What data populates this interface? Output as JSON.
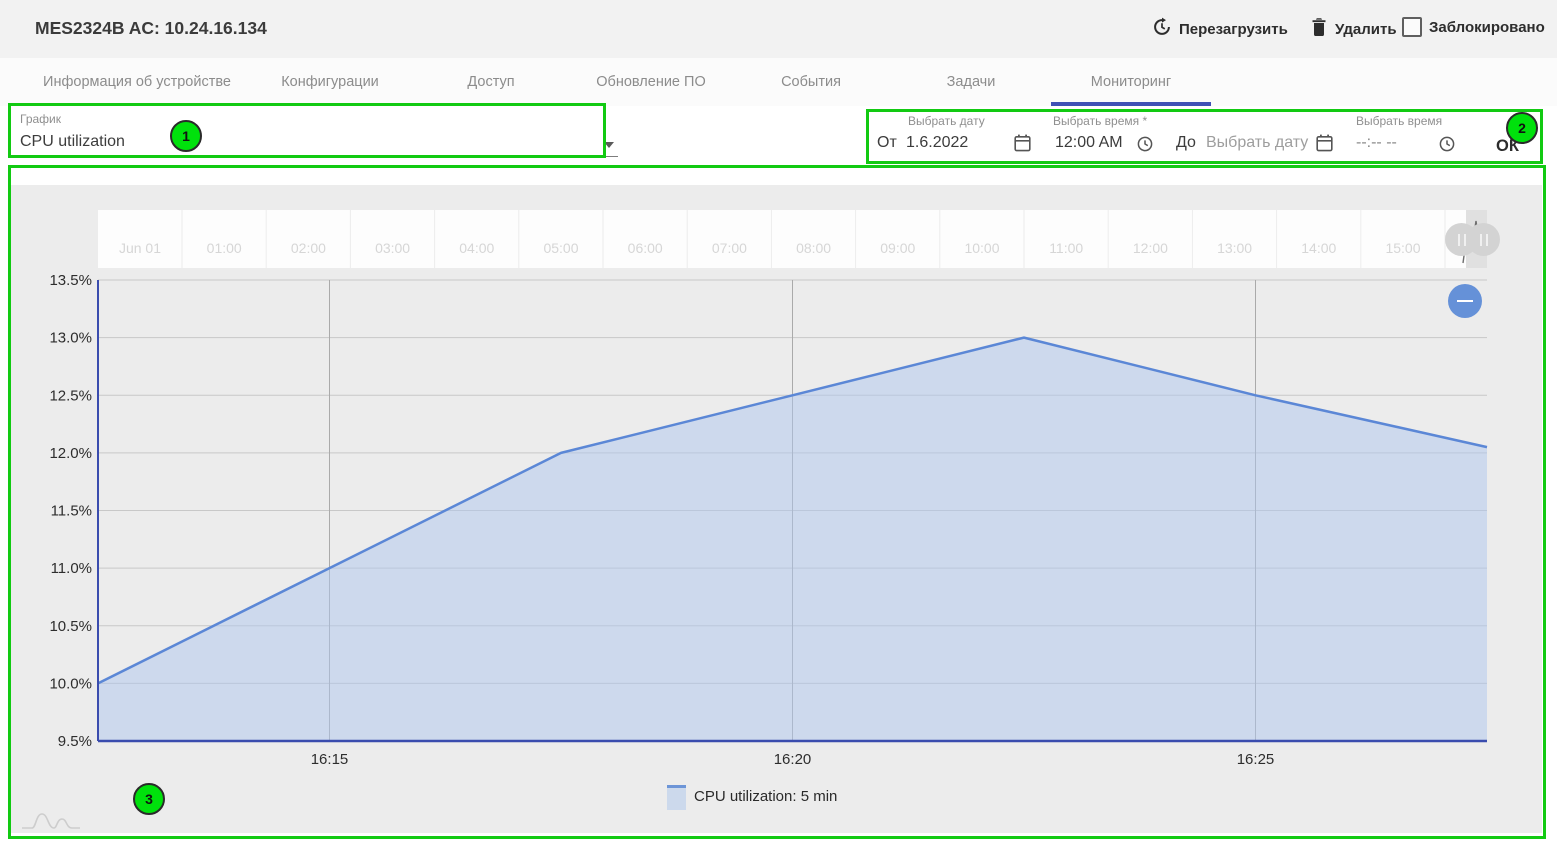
{
  "header": {
    "title": "MES2324B AC: 10.24.16.134",
    "reload_label": "Перезагрузить",
    "delete_label": "Удалить",
    "blocked_label": "Заблокировано"
  },
  "tabs": [
    {
      "label": "Информация об устройстве",
      "active": false
    },
    {
      "label": "Конфигурации",
      "active": false
    },
    {
      "label": "Доступ",
      "active": false
    },
    {
      "label": "Обновление ПО",
      "active": false
    },
    {
      "label": "События",
      "active": false
    },
    {
      "label": "Задачи",
      "active": false
    },
    {
      "label": "Мониторинг",
      "active": true
    }
  ],
  "graph_select": {
    "label": "График",
    "value": "CPU utilization"
  },
  "range_picker": {
    "from_prefix": "От",
    "to_prefix": "До",
    "from_date_label": "Выбрать дату",
    "from_time_label": "Выбрать время *",
    "to_time_label": "Выбрать время",
    "from_date_value": "1.6.2022",
    "from_time_value": "12:00 AM",
    "to_date_placeholder": "Выбрать дату",
    "to_time_placeholder": "--:-- --",
    "ok_label": "ОК"
  },
  "annotations": {
    "badge_1": "1",
    "badge_2": "2",
    "badge_3": "3"
  },
  "chart_data": {
    "type": "area",
    "title": "",
    "xlabel": "",
    "ylabel": "",
    "x_axis_type": "time",
    "ylim": [
      9.5,
      13.5
    ],
    "y_tick_step": 0.5,
    "y_tick_labels": [
      "13.5%",
      "13.0%",
      "12.5%",
      "12.0%",
      "11.5%",
      "11.0%",
      "10.5%",
      "10.0%",
      "9.5%"
    ],
    "x_tick_labels": [
      "16:15",
      "16:20",
      "16:25"
    ],
    "x_tick_indices": [
      1,
      3,
      5
    ],
    "series": [
      {
        "name": "CPU utilization: 5 min",
        "points": [
          {
            "time": "16:12:30",
            "value": 10.0
          },
          {
            "time": "16:15:00",
            "value": 11.0
          },
          {
            "time": "16:17:30",
            "value": 12.0
          },
          {
            "time": "16:20:00",
            "value": 12.5
          },
          {
            "time": "16:22:30",
            "value": 13.0
          },
          {
            "time": "16:25:00",
            "value": 12.5
          },
          {
            "time": "16:27:30",
            "value": 12.05
          }
        ]
      }
    ],
    "legend": "CPU utilization: 5 min",
    "legend_position": "bottom",
    "grid": true,
    "navigator_labels": [
      "Jun 01",
      "01:00",
      "02:00",
      "03:00",
      "04:00",
      "05:00",
      "06:00",
      "07:00",
      "08:00",
      "09:00",
      "10:00",
      "11:00",
      "12:00",
      "13:00",
      "14:00",
      "15:00"
    ],
    "line_color": "#5b87d6",
    "fill_color": "rgba(173,197,237,0.5)",
    "axis_color": "#3a4cae"
  }
}
